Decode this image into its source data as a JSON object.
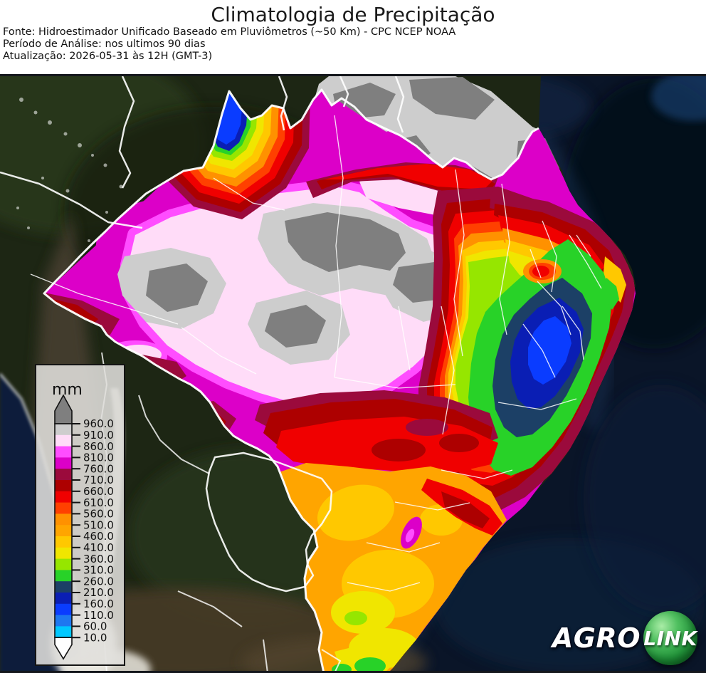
{
  "header": {
    "title": "Climatologia de Precipitação",
    "source": "Fonte: Hidroestimador Unificado Baseado em Pluviômetros (~50 Km) - CPC NCEP NOAA",
    "period": "Período de Análise: nos ultimos 90 dias",
    "update": "Atualização: 2026-05-31 às 12H (GMT-3)"
  },
  "legend": {
    "title": "mm",
    "unit": "mm",
    "tick_values": [
      "960.0",
      "910.0",
      "860.0",
      "810.0",
      "760.0",
      "710.0",
      "660.0",
      "610.0",
      "560.0",
      "510.0",
      "460.0",
      "410.0",
      "360.0",
      "310.0",
      "260.0",
      "210.0",
      "160.0",
      "110.0",
      "60.0",
      "10.0"
    ],
    "segment_colors": [
      "gray_light",
      "pink_pale",
      "pink",
      "magenta",
      "wine",
      "red_dark",
      "red",
      "orange_red",
      "orange",
      "amber",
      "gold",
      "yellow",
      "chartreuse",
      "green",
      "slate",
      "navy",
      "blue",
      "blue_bright",
      "cyan"
    ],
    "above_key": "above",
    "below_key": "below"
  },
  "palette": {
    "above": "#7f7f7f",
    "gray_light": "#cdcdcd",
    "pink_pale": "#ffdcf8",
    "pink": "#ff4dff",
    "magenta": "#dc00c8",
    "wine": "#9b0a3c",
    "red_dark": "#ad0000",
    "red": "#f00000",
    "orange_red": "#ff4000",
    "orange": "#ff9100",
    "amber": "#ffa500",
    "gold": "#ffc800",
    "yellow": "#f0e600",
    "chartreuse": "#96e600",
    "green": "#28d228",
    "slate": "#1c4066",
    "navy": "#0a1eb4",
    "blue": "#0a3cff",
    "blue_bright": "#1e78f0",
    "cyan": "#00c8ff",
    "below": "#ffffff"
  },
  "map": {
    "ocean_color": "#0a1528",
    "land_color": "#1d2614",
    "border_color": "#ffffff"
  },
  "logo": {
    "agro": "AGRO",
    "link": "LINK"
  }
}
